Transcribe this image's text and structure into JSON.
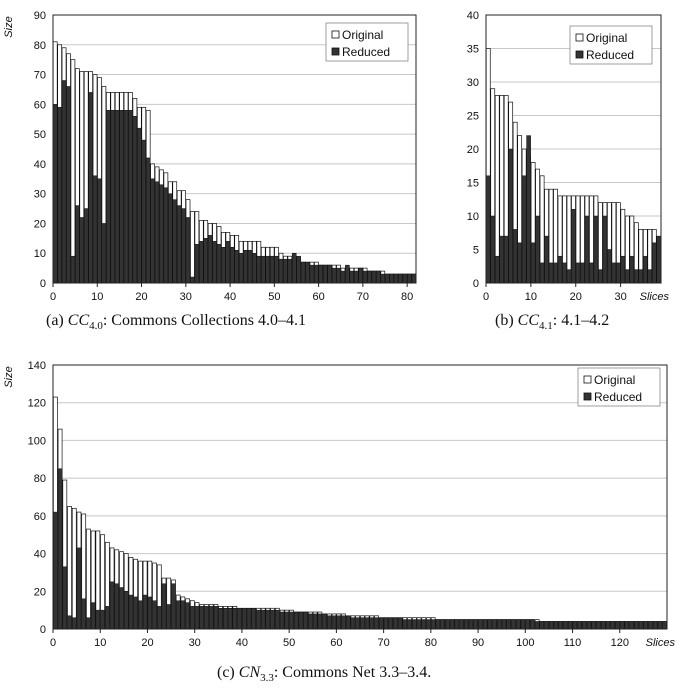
{
  "colors": {
    "original": "#ffffff",
    "reduced": "#333333",
    "axis": "#222222",
    "grid": "#c8c8c8"
  },
  "chart_data": [
    {
      "type": "bar",
      "id": "a",
      "ylabel": "Size",
      "xlabel": "",
      "ylim": [
        0,
        90
      ],
      "yticks": [
        0,
        10,
        20,
        30,
        40,
        50,
        60,
        70,
        80,
        90
      ],
      "xlim": [
        0,
        82
      ],
      "xticks": [
        0,
        10,
        20,
        30,
        40,
        50,
        60,
        70,
        80
      ],
      "legend": {
        "placement": "top-right",
        "labels": [
          "Original",
          "Reduced"
        ]
      },
      "series": [
        {
          "name": "Original",
          "values": [
            81,
            80,
            79,
            77,
            75,
            72,
            71,
            71,
            71,
            70,
            69,
            66,
            64,
            64,
            64,
            64,
            64,
            64,
            62,
            59,
            59,
            58,
            40,
            39,
            38,
            37,
            34,
            34,
            31,
            31,
            28,
            24,
            24,
            21,
            21,
            20,
            20,
            19,
            17,
            17,
            16,
            16,
            14,
            14,
            14,
            14,
            14,
            12,
            12,
            12,
            12,
            10,
            9,
            9,
            8,
            8,
            7,
            7,
            7,
            7,
            6,
            6,
            6,
            6,
            6,
            5,
            5,
            5,
            5,
            5,
            5,
            4,
            4,
            4,
            4,
            3,
            3,
            3,
            3,
            3,
            3,
            3
          ]
        },
        {
          "name": "Reduced",
          "values": [
            60,
            59,
            68,
            66,
            9,
            26,
            22,
            25,
            64,
            36,
            35,
            20,
            58,
            58,
            58,
            58,
            58,
            58,
            56,
            52,
            48,
            42,
            35,
            34,
            33,
            32,
            30,
            28,
            26,
            25,
            22,
            2,
            13,
            14,
            15,
            16,
            14,
            13,
            12,
            14,
            12,
            11,
            10,
            11,
            11,
            10,
            9,
            9,
            9,
            9,
            9,
            8,
            8,
            8,
            10,
            9,
            7,
            7,
            6,
            6,
            6,
            6,
            6,
            5,
            5,
            4,
            6,
            4,
            4,
            5,
            4,
            4,
            4,
            4,
            3,
            3,
            3,
            3,
            3,
            3,
            3,
            3
          ]
        }
      ]
    },
    {
      "type": "bar",
      "id": "b",
      "ylabel": "",
      "xlabel": "Slices",
      "ylim": [
        0,
        40
      ],
      "yticks": [
        0,
        5,
        10,
        15,
        20,
        25,
        30,
        35,
        40
      ],
      "xlim": [
        0,
        39
      ],
      "xticks": [
        0,
        10,
        20,
        30
      ],
      "legend": {
        "placement": "top-right",
        "labels": [
          "Original",
          "Reduced"
        ]
      },
      "series": [
        {
          "name": "Original",
          "values": [
            35,
            29,
            28,
            28,
            28,
            27,
            24,
            22,
            20,
            19,
            18,
            17,
            16,
            14,
            14,
            14,
            13,
            13,
            13,
            13,
            13,
            13,
            13,
            13,
            13,
            12,
            12,
            12,
            12,
            12,
            11,
            10,
            10,
            9,
            8,
            8,
            8,
            8,
            3
          ]
        },
        {
          "name": "Reduced",
          "values": [
            16,
            10,
            4,
            7,
            7,
            20,
            8,
            6,
            16,
            22,
            6,
            10,
            3,
            7,
            3,
            3,
            4,
            3,
            2,
            11,
            3,
            3,
            10,
            3,
            10,
            2,
            10,
            5,
            3,
            3,
            4,
            2,
            4,
            2,
            2,
            4,
            2,
            6,
            7
          ]
        }
      ]
    },
    {
      "type": "bar",
      "id": "c",
      "ylabel": "Size",
      "xlabel": "Slices",
      "ylim": [
        0,
        140
      ],
      "yticks": [
        0,
        20,
        40,
        60,
        80,
        100,
        120,
        140
      ],
      "xlim": [
        0,
        130
      ],
      "xticks": [
        0,
        10,
        20,
        30,
        40,
        50,
        60,
        70,
        80,
        90,
        100,
        110,
        120
      ],
      "legend": {
        "placement": "top-right",
        "labels": [
          "Original",
          "Reduced"
        ]
      },
      "series": [
        {
          "name": "Original",
          "values": [
            123,
            106,
            79,
            65,
            64,
            62,
            61,
            53,
            52,
            52,
            50,
            46,
            43,
            42,
            41,
            40,
            38,
            37,
            36,
            36,
            36,
            35,
            34,
            27,
            27,
            26,
            18,
            17,
            16,
            15,
            14,
            13,
            13,
            13,
            13,
            12,
            12,
            12,
            12,
            11,
            11,
            11,
            11,
            11,
            11,
            11,
            11,
            11,
            10,
            10,
            10,
            9,
            9,
            9,
            9,
            9,
            9,
            8,
            8,
            8,
            8,
            8,
            7,
            7,
            7,
            7,
            7,
            7,
            7,
            6,
            6,
            6,
            6,
            6,
            6,
            6,
            6,
            6,
            6,
            6,
            6,
            5,
            5,
            5,
            5,
            5,
            5,
            5,
            5,
            5,
            5,
            5,
            5,
            5,
            5,
            5,
            5,
            5,
            5,
            5,
            5,
            5,
            5,
            4,
            4,
            4,
            4,
            4,
            4,
            4,
            4,
            4,
            4,
            4,
            4,
            4,
            4,
            4,
            4,
            4,
            4,
            4,
            4,
            4,
            4,
            4,
            4,
            4,
            4,
            4
          ]
        },
        {
          "name": "Reduced",
          "values": [
            62,
            85,
            33,
            7,
            6,
            43,
            16,
            6,
            14,
            10,
            10,
            12,
            25,
            24,
            22,
            20,
            18,
            17,
            15,
            18,
            17,
            15,
            12,
            24,
            13,
            24,
            15,
            15,
            14,
            12,
            12,
            12,
            12,
            12,
            12,
            11,
            11,
            11,
            11,
            11,
            11,
            11,
            11,
            10,
            10,
            10,
            10,
            10,
            9,
            9,
            9,
            9,
            9,
            9,
            8,
            8,
            8,
            8,
            7,
            7,
            7,
            7,
            7,
            6,
            6,
            6,
            6,
            6,
            6,
            6,
            6,
            6,
            6,
            6,
            5,
            5,
            5,
            5,
            5,
            5,
            5,
            5,
            5,
            5,
            5,
            5,
            5,
            5,
            5,
            5,
            5,
            5,
            5,
            5,
            5,
            5,
            5,
            5,
            5,
            5,
            5,
            5,
            4,
            4,
            4,
            4,
            4,
            4,
            4,
            4,
            4,
            4,
            4,
            4,
            4,
            4,
            4,
            4,
            4,
            4,
            4,
            4,
            4,
            4,
            4,
            4,
            4,
            4,
            4,
            4
          ]
        }
      ]
    }
  ],
  "captions": {
    "a": {
      "prefix": "(a) ",
      "sym": "CC",
      "sub": "4.0",
      "rest": ": Commons Collections 4.0–4.1"
    },
    "b": {
      "prefix": "(b) ",
      "sym": "CC",
      "sub": "4.1",
      "rest": ": 4.1–4.2"
    },
    "c": {
      "prefix": "(c) ",
      "sym": "CN",
      "sub": "3.3",
      "rest": ": Commons Net 3.3–3.4."
    }
  }
}
